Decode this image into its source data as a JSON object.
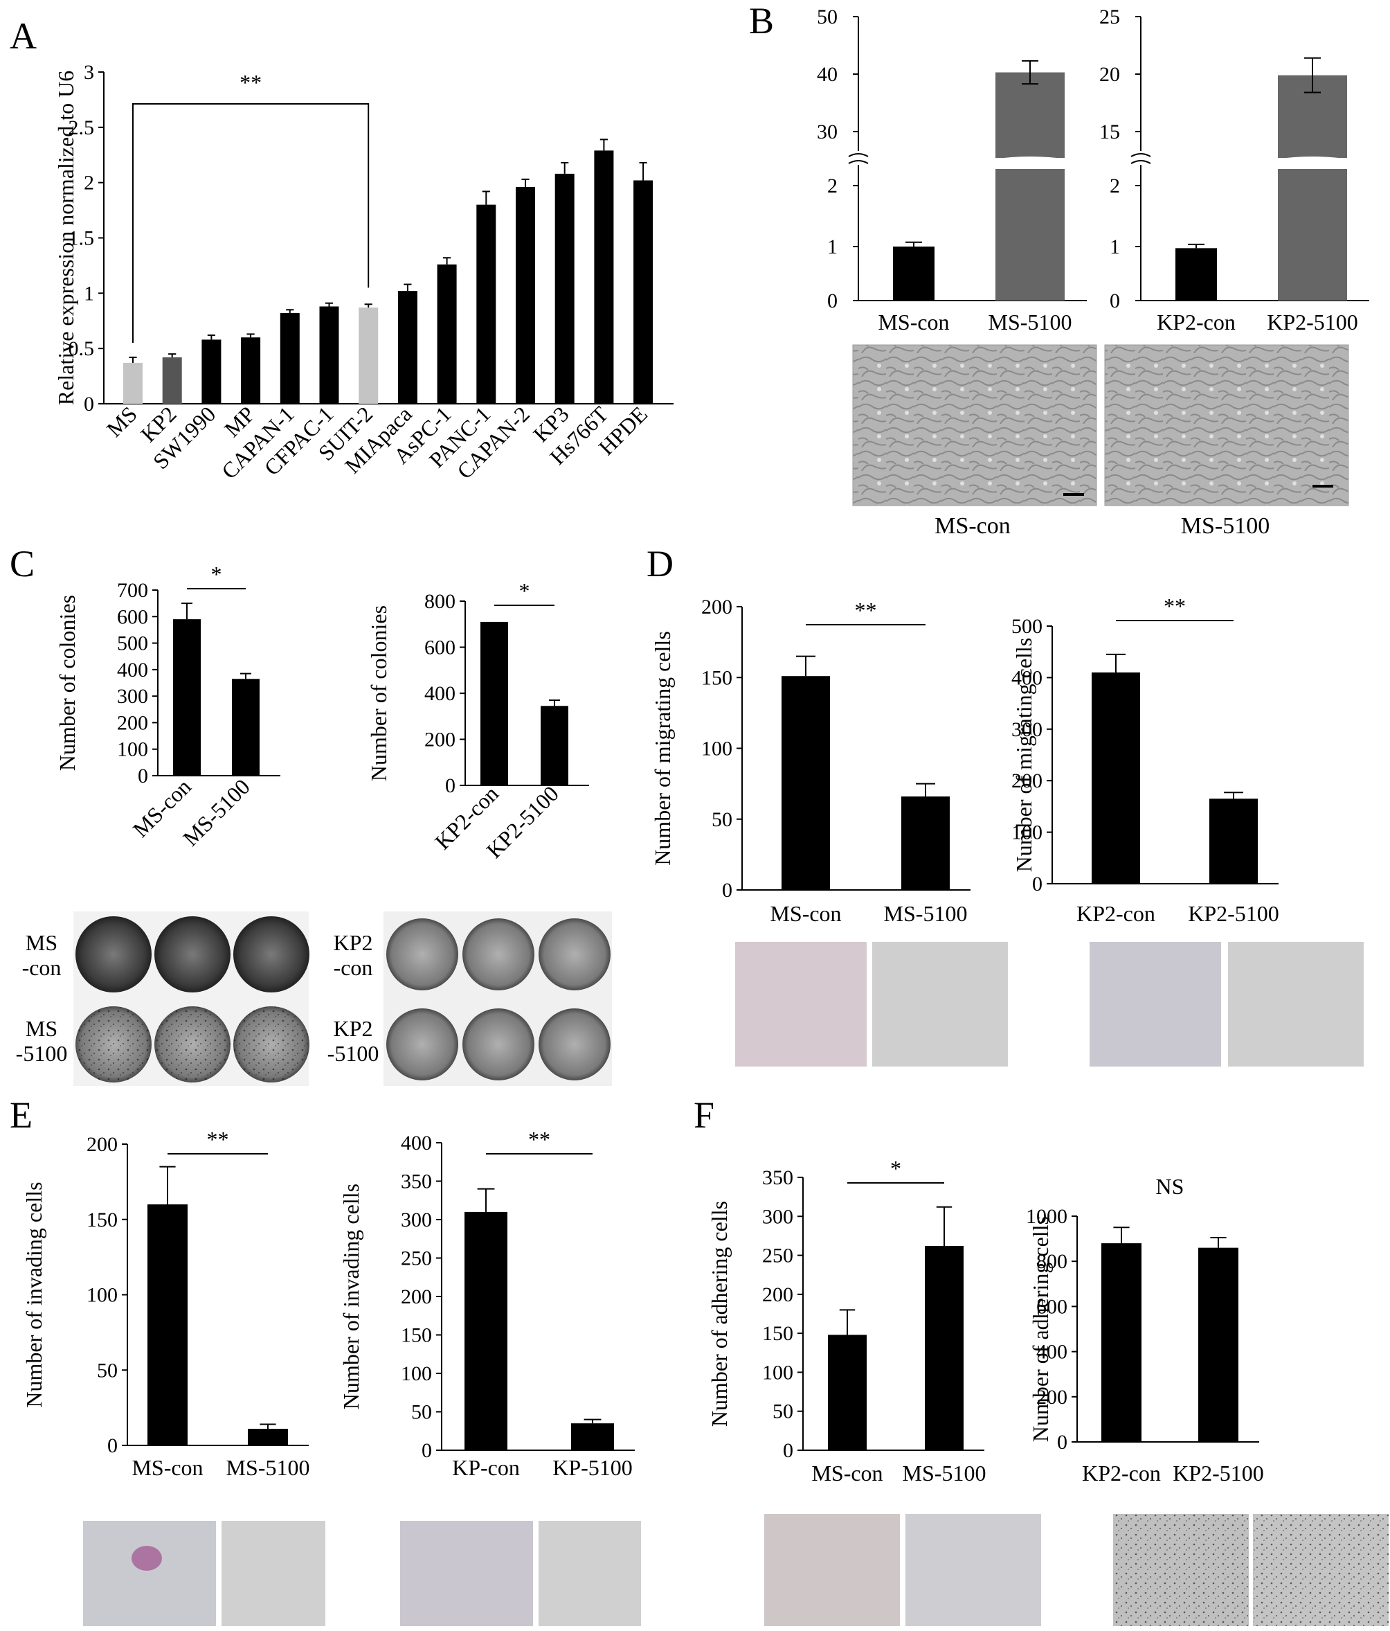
{
  "chart_data": [
    {
      "panel": "A",
      "type": "bar",
      "ylabel": "Relative expression normalized to U6",
      "categories": [
        "MS",
        "KP2",
        "SW1990",
        "MP",
        "CAPAN-1",
        "CFPAC-1",
        "SUIT-2",
        "MIApaca",
        "AsPC-1",
        "PANC-1",
        "CAPAN-2",
        "KP3",
        "Hs766T",
        "HPDE"
      ],
      "values": [
        0.37,
        0.42,
        0.58,
        0.6,
        0.82,
        0.88,
        0.87,
        1.02,
        1.26,
        1.8,
        1.96,
        2.08,
        2.29,
        2.02
      ],
      "errors": [
        0.05,
        0.03,
        0.04,
        0.03,
        0.03,
        0.03,
        0.03,
        0.06,
        0.06,
        0.12,
        0.07,
        0.1,
        0.1,
        0.16
      ],
      "bar_colors": [
        "#c4c4c4",
        "#555555",
        "#000000",
        "#000000",
        "#000000",
        "#000000",
        "#c4c4c4",
        "#000000",
        "#000000",
        "#000000",
        "#000000",
        "#000000",
        "#000000",
        "#000000"
      ],
      "ylim": [
        0,
        3
      ],
      "yticks": [
        "0",
        "0.5",
        "1",
        "1.5",
        "2",
        "2.5",
        "3"
      ],
      "significance": {
        "label": "**",
        "from": 0,
        "to": 6
      }
    },
    {
      "panel": "B",
      "type": "bar",
      "axis_break": true,
      "categories": [
        "MS-con",
        "MS-5100"
      ],
      "values": [
        1.0,
        40.3
      ],
      "errors": [
        0.08,
        2.0
      ],
      "bar_colors": [
        "#000000",
        "#666666"
      ],
      "yticks_lower": [
        "0",
        "1",
        "2"
      ],
      "yticks_upper": [
        "30",
        "40",
        "50"
      ]
    },
    {
      "panel": "B",
      "type": "bar",
      "axis_break": true,
      "categories": [
        "KP2-con",
        "KP2-5100"
      ],
      "values": [
        0.97,
        19.9
      ],
      "errors": [
        0.07,
        1.5
      ],
      "bar_colors": [
        "#000000",
        "#666666"
      ],
      "yticks_lower": [
        "0",
        "1",
        "2"
      ],
      "yticks_upper": [
        "15",
        "20",
        "25"
      ]
    },
    {
      "panel": "C",
      "type": "bar",
      "ylabel": "Number of colonies",
      "categories": [
        "MS-con",
        "MS-5100"
      ],
      "values": [
        590,
        365
      ],
      "errors": [
        60,
        20
      ],
      "ylim": [
        0,
        700
      ],
      "yticks": [
        "0",
        "100",
        "200",
        "300",
        "400",
        "500",
        "600",
        "700"
      ],
      "significance": {
        "label": "*"
      }
    },
    {
      "panel": "C",
      "type": "bar",
      "ylabel": "Number of colonies",
      "categories": [
        "KP2-con",
        "KP2-5100"
      ],
      "values": [
        710,
        345
      ],
      "errors": [
        0,
        25
      ],
      "ylim": [
        0,
        800
      ],
      "yticks": [
        "0",
        "200",
        "400",
        "600",
        "800"
      ],
      "significance": {
        "label": "*"
      }
    },
    {
      "panel": "D",
      "type": "bar",
      "ylabel": "Number of migrating cells",
      "categories": [
        "MS-con",
        "MS-5100"
      ],
      "values": [
        151,
        66
      ],
      "errors": [
        14,
        9
      ],
      "ylim": [
        0,
        200
      ],
      "yticks": [
        "0",
        "50",
        "100",
        "150",
        "200"
      ],
      "significance": {
        "label": "**"
      }
    },
    {
      "panel": "D",
      "type": "bar",
      "ylabel": "Number of migrating cells",
      "categories": [
        "KP2-con",
        "KP2-5100"
      ],
      "values": [
        410,
        165
      ],
      "errors": [
        35,
        12
      ],
      "ylim": [
        0,
        500
      ],
      "yticks": [
        "0",
        "100",
        "200",
        "300",
        "400",
        "500"
      ],
      "significance": {
        "label": "**"
      }
    },
    {
      "panel": "E",
      "type": "bar",
      "ylabel": "Number of invading cells",
      "categories": [
        "MS-con",
        "MS-5100"
      ],
      "values": [
        160,
        11
      ],
      "errors": [
        25,
        3
      ],
      "ylim": [
        0,
        200
      ],
      "yticks": [
        "0",
        "50",
        "100",
        "150",
        "200"
      ],
      "significance": {
        "label": "**"
      }
    },
    {
      "panel": "E",
      "type": "bar",
      "ylabel": "Number of invading cells",
      "categories": [
        "KP-con",
        "KP-5100"
      ],
      "values": [
        310,
        35
      ],
      "errors": [
        30,
        5
      ],
      "ylim": [
        0,
        400
      ],
      "yticks": [
        "0",
        "50",
        "100",
        "150",
        "200",
        "250",
        "300",
        "350",
        "400"
      ],
      "significance": {
        "label": "**"
      }
    },
    {
      "panel": "F",
      "type": "bar",
      "ylabel": "Number of adhering cells",
      "categories": [
        "MS-con",
        "MS-5100"
      ],
      "values": [
        148,
        262
      ],
      "errors": [
        32,
        50
      ],
      "ylim": [
        0,
        350
      ],
      "yticks": [
        "0",
        "50",
        "100",
        "150",
        "200",
        "250",
        "300",
        "350"
      ],
      "significance": {
        "label": "*"
      }
    },
    {
      "panel": "F",
      "type": "bar",
      "ylabel": "Number of adhering cells",
      "categories": [
        "KP2-con",
        "KP2-5100"
      ],
      "values": [
        880,
        860
      ],
      "errors": [
        70,
        45
      ],
      "ylim": [
        0,
        1000
      ],
      "yticks": [
        "0",
        "200",
        "400",
        "600",
        "800",
        "1000"
      ],
      "significance": {
        "label": "NS"
      }
    }
  ],
  "panel_letters": {
    "A": "A",
    "B": "B",
    "C": "C",
    "D": "D",
    "E": "E",
    "F": "F"
  },
  "captions": {
    "b_left": "MS-con",
    "b_right": "MS-5100",
    "c_ms_con": "MS\n-con",
    "c_ms_5100": "MS\n-5100",
    "c_kp2_con": "KP2\n-con",
    "c_kp2_5100": "KP2\n-5100"
  },
  "colors": {
    "bar": "#000000",
    "light_bar": "#c4c4c4",
    "dark_gray_bar": "#666666",
    "micro_bg": "#d2d2d2",
    "stain": "#a0508c"
  }
}
